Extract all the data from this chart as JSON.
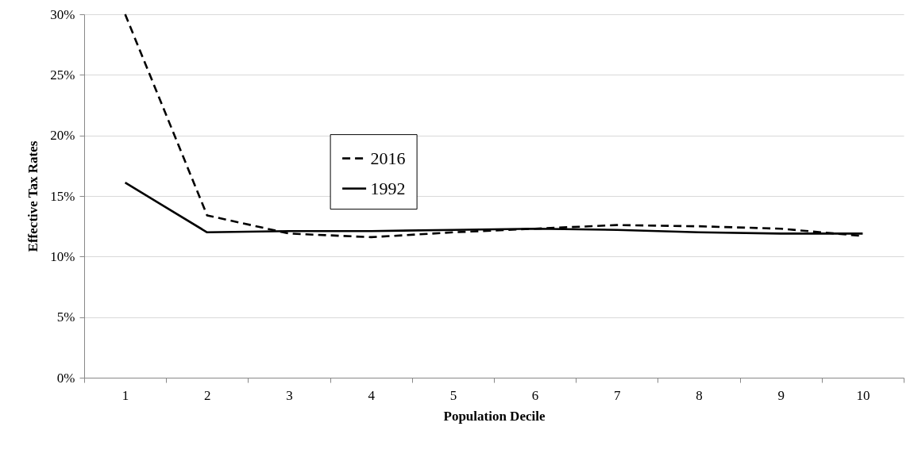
{
  "chart_data": {
    "type": "line",
    "xlabel": "Population Decile",
    "ylabel": "Effective Tax Rates",
    "categories": [
      "1",
      "2",
      "3",
      "4",
      "5",
      "6",
      "7",
      "8",
      "9",
      "10"
    ],
    "series": [
      {
        "name": "2016",
        "color": "#000000",
        "line_style": "dashed",
        "values": [
          30,
          13.4,
          11.9,
          11.6,
          12.0,
          12.3,
          12.6,
          12.5,
          12.3,
          11.7
        ]
      },
      {
        "name": "1992",
        "color": "#000000",
        "line_style": "solid",
        "values": [
          16.1,
          12.0,
          12.1,
          12.1,
          12.2,
          12.3,
          12.2,
          12.0,
          11.9,
          11.9
        ]
      }
    ],
    "ylim": [
      0,
      30
    ],
    "yticks": [
      {
        "value": 0,
        "label": "0%"
      },
      {
        "value": 5,
        "label": "5%"
      },
      {
        "value": 10,
        "label": "10%"
      },
      {
        "value": 15,
        "label": "15%"
      },
      {
        "value": 20,
        "label": "20%"
      },
      {
        "value": 25,
        "label": "25%"
      },
      {
        "value": 30,
        "label": "30%"
      }
    ],
    "grid": "y",
    "legend": "center",
    "marker": "none"
  }
}
